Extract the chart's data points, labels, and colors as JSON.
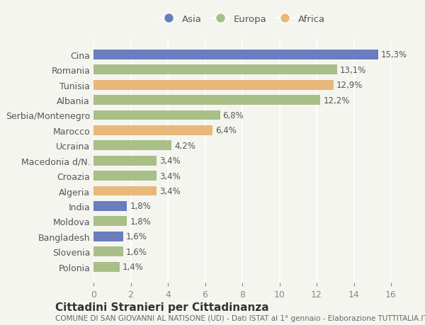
{
  "categories": [
    "Cina",
    "Romania",
    "Tunisia",
    "Albania",
    "Serbia/Montenegro",
    "Marocco",
    "Ucraina",
    "Macedonia d/N.",
    "Croazia",
    "Algeria",
    "India",
    "Moldova",
    "Bangladesh",
    "Slovenia",
    "Polonia"
  ],
  "values": [
    15.3,
    13.1,
    12.9,
    12.2,
    6.8,
    6.4,
    4.2,
    3.4,
    3.4,
    3.4,
    1.8,
    1.8,
    1.6,
    1.6,
    1.4
  ],
  "labels": [
    "15,3%",
    "13,1%",
    "12,9%",
    "12,2%",
    "6,8%",
    "6,4%",
    "4,2%",
    "3,4%",
    "3,4%",
    "3,4%",
    "1,8%",
    "1,8%",
    "1,6%",
    "1,6%",
    "1,4%"
  ],
  "continents": [
    "Asia",
    "Europa",
    "Africa",
    "Europa",
    "Europa",
    "Africa",
    "Europa",
    "Europa",
    "Europa",
    "Africa",
    "Asia",
    "Europa",
    "Asia",
    "Europa",
    "Europa"
  ],
  "colors": {
    "Asia": "#6b7dbf",
    "Europa": "#a8bf87",
    "Africa": "#e8b87a"
  },
  "xlim": [
    0,
    16
  ],
  "xticks": [
    0,
    2,
    4,
    6,
    8,
    10,
    12,
    14,
    16
  ],
  "title": "Cittadini Stranieri per Cittadinanza",
  "subtitle": "COMUNE DI SAN GIOVANNI AL NATISONE (UD) - Dati ISTAT al 1° gennaio - Elaborazione TUTTITALIA.IT",
  "background_color": "#f5f5f0",
  "bar_height": 0.65,
  "label_fontsize": 8.5,
  "tick_fontsize": 9,
  "title_fontsize": 11,
  "subtitle_fontsize": 7.5
}
